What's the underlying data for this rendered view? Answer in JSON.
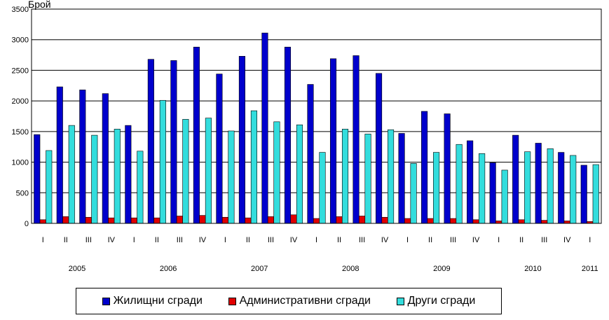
{
  "chart_data": {
    "type": "bar",
    "title": "",
    "ylabel": "Брой",
    "xlabel": "",
    "ylim": [
      0,
      3500
    ],
    "yticks": [
      0,
      500,
      1000,
      1500,
      2000,
      2500,
      3000,
      3500
    ],
    "grid": true,
    "legend_position": "bottom",
    "categories": [
      "I",
      "II",
      "III",
      "IV",
      "I",
      "II",
      "III",
      "IV",
      "I",
      "II",
      "III",
      "IV",
      "I",
      "II",
      "III",
      "IV",
      "I",
      "II",
      "III",
      "IV",
      "I",
      "II",
      "III",
      "IV",
      "I"
    ],
    "year_labels": [
      {
        "label": "2005",
        "from": 0,
        "to": 3
      },
      {
        "label": "2006",
        "from": 4,
        "to": 7
      },
      {
        "label": "2007",
        "from": 8,
        "to": 11
      },
      {
        "label": "2008",
        "from": 12,
        "to": 15
      },
      {
        "label": "2009",
        "from": 16,
        "to": 19
      },
      {
        "label": "2010",
        "from": 20,
        "to": 23
      },
      {
        "label": "2011",
        "from": 24,
        "to": 24
      }
    ],
    "series": [
      {
        "name": "Жилищни сгради",
        "color": "#0000cc",
        "values": [
          1450,
          2230,
          2180,
          2120,
          1600,
          2680,
          2660,
          2880,
          2440,
          2730,
          3110,
          2880,
          2270,
          2690,
          2740,
          2450,
          1470,
          1830,
          1790,
          1350,
          990,
          1440,
          1310,
          1160,
          950
        ]
      },
      {
        "name": "Административни сгради",
        "color": "#e00000",
        "values": [
          60,
          110,
          100,
          90,
          90,
          90,
          120,
          130,
          100,
          90,
          110,
          140,
          80,
          110,
          120,
          100,
          80,
          80,
          80,
          60,
          40,
          60,
          50,
          40,
          30
        ]
      },
      {
        "name": "Други сгради",
        "color": "#33dddd",
        "values": [
          1190,
          1600,
          1440,
          1540,
          1180,
          2010,
          1700,
          1720,
          1510,
          1840,
          1660,
          1610,
          1160,
          1540,
          1460,
          1530,
          980,
          1160,
          1290,
          1140,
          870,
          1170,
          1220,
          1110,
          960
        ]
      }
    ]
  }
}
